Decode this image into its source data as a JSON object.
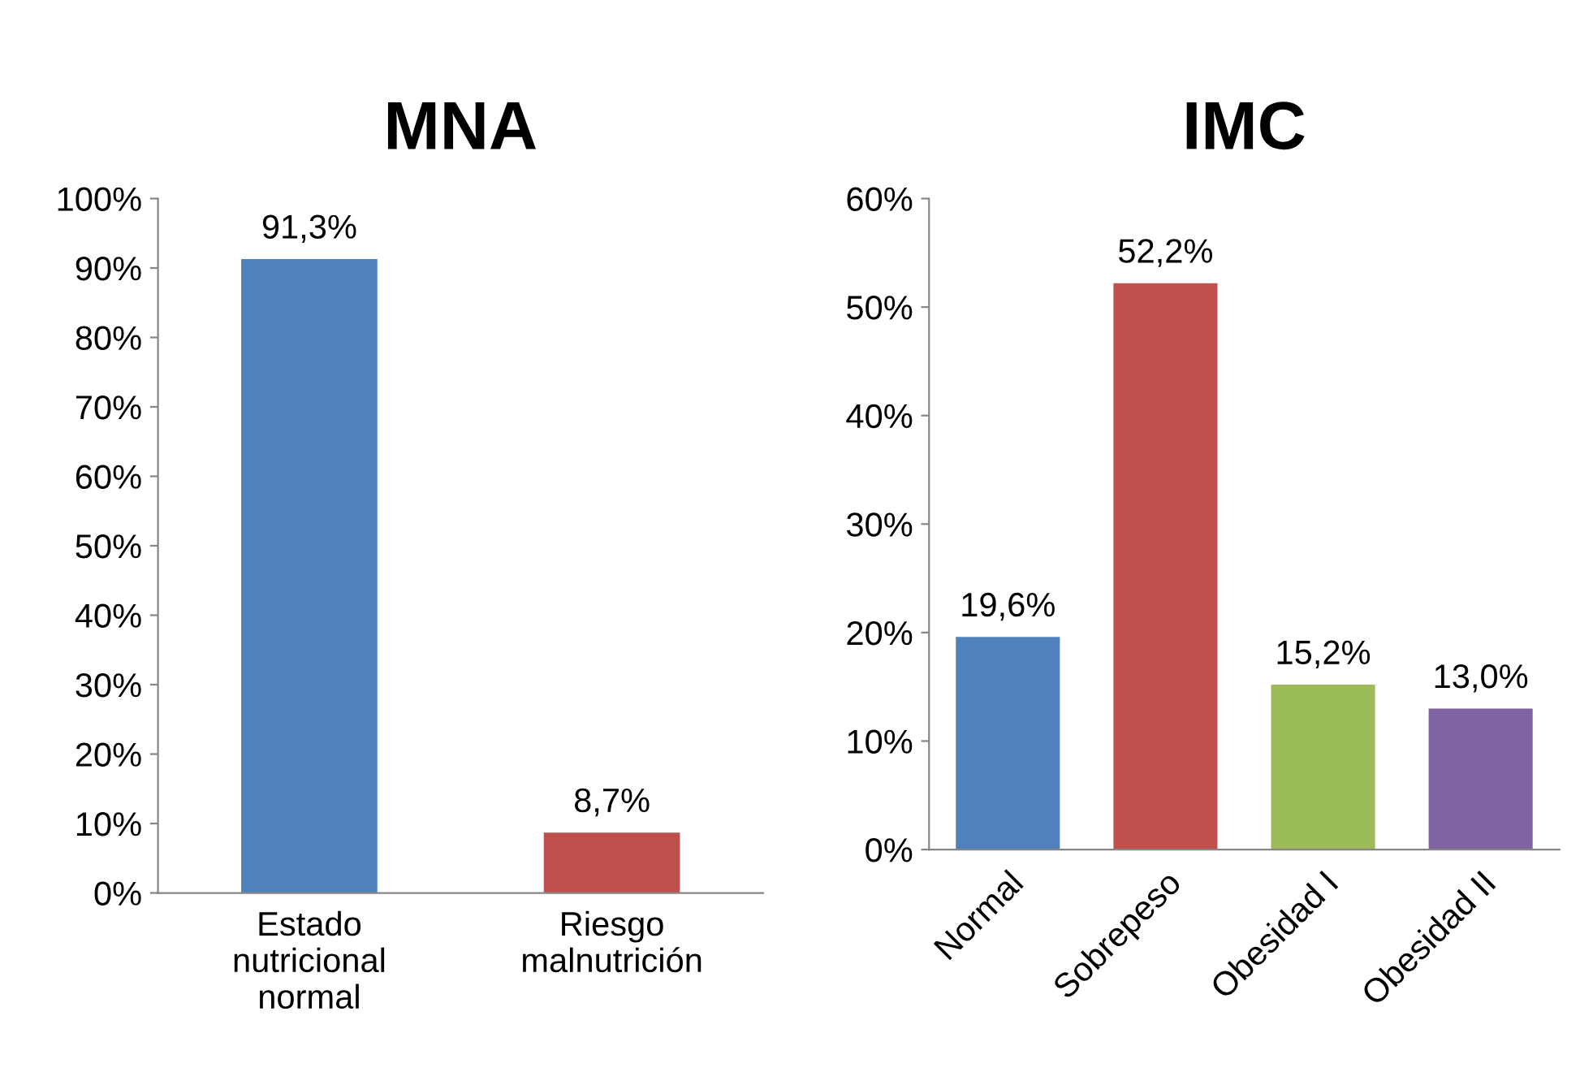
{
  "chart_data": [
    {
      "type": "bar",
      "title": "MNA",
      "categories": [
        "Estado\nnutricional\nnormal",
        "Riesgo\nmalnutrición"
      ],
      "values": [
        91.3,
        8.7
      ],
      "colors": [
        "#4f81bd",
        "#c0504d"
      ],
      "value_labels": [
        "91,3%",
        "8,7%"
      ],
      "ylim": [
        0,
        100
      ],
      "yticks": [
        {
          "value": 0,
          "label": "0%"
        },
        {
          "value": 10,
          "label": "10%"
        },
        {
          "value": 20,
          "label": "20%"
        },
        {
          "value": 30,
          "label": "30%"
        },
        {
          "value": 40,
          "label": "40%"
        },
        {
          "value": 50,
          "label": "50%"
        },
        {
          "value": 60,
          "label": "60%"
        },
        {
          "value": 70,
          "label": "70%"
        },
        {
          "value": 80,
          "label": "80%"
        },
        {
          "value": 90,
          "label": "90%"
        },
        {
          "value": 100,
          "label": "100%"
        }
      ],
      "grid": false,
      "legend": false
    },
    {
      "type": "bar",
      "title": "IMC",
      "categories": [
        "Normal",
        "Sobrepeso",
        "Obesidad I",
        "Obesidad II"
      ],
      "values": [
        19.6,
        52.2,
        15.2,
        13.0
      ],
      "colors": [
        "#4f81bd",
        "#c0504d",
        "#9bbb59",
        "#8064a2"
      ],
      "value_labels": [
        "19,6%",
        "52,2%",
        "15,2%",
        "13,0%"
      ],
      "ylim": [
        0,
        60
      ],
      "yticks": [
        {
          "value": 0,
          "label": "0%"
        },
        {
          "value": 10,
          "label": "10%"
        },
        {
          "value": 20,
          "label": "20%"
        },
        {
          "value": 30,
          "label": "30%"
        },
        {
          "value": 40,
          "label": "40%"
        },
        {
          "value": 50,
          "label": "50%"
        },
        {
          "value": 60,
          "label": "60%"
        }
      ],
      "grid": false,
      "legend": false
    }
  ]
}
